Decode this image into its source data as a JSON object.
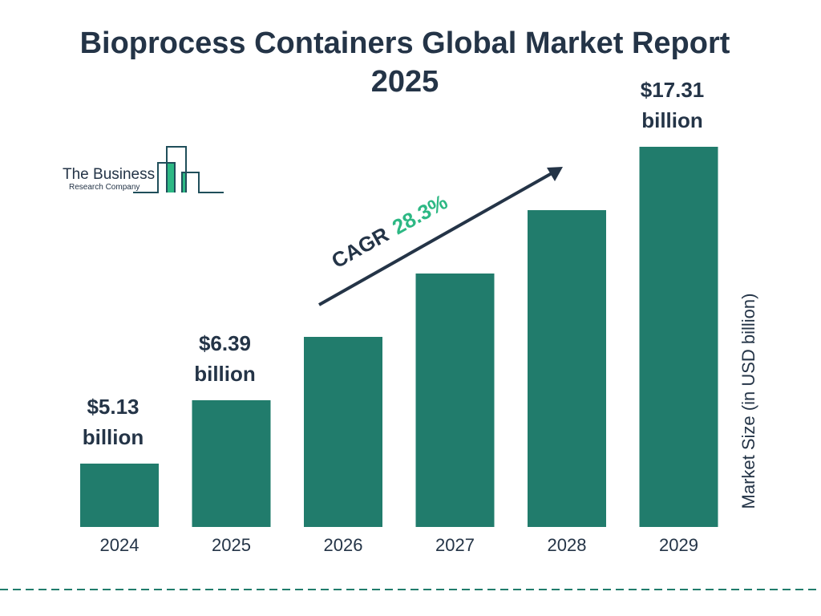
{
  "chart_data": {
    "type": "bar",
    "title": "Bioprocess Containers Global Market Report 2025",
    "categories": [
      "2024",
      "2025",
      "2026",
      "2027",
      "2028",
      "2029"
    ],
    "values": [
      5.13,
      6.39,
      8.2,
      10.52,
      13.5,
      17.31
    ],
    "data_labels": [
      {
        "index": 0,
        "line1": "$5.13",
        "line2": "billion"
      },
      {
        "index": 1,
        "line1": "$6.39",
        "line2": "billion"
      },
      {
        "index": 5,
        "line1": "$17.31",
        "line2": "billion"
      }
    ],
    "ylabel": "Market Size (in USD billion)",
    "xlabel": "",
    "grid": false,
    "annotation": {
      "prefix": "CAGR",
      "value": "28.3%"
    },
    "colors": {
      "bar": "#217C6C",
      "text": "#243447",
      "cagr": "#2DB884",
      "divider": "#217C6C"
    }
  },
  "logo": {
    "line1": "The Business",
    "line2": "Research Company"
  }
}
